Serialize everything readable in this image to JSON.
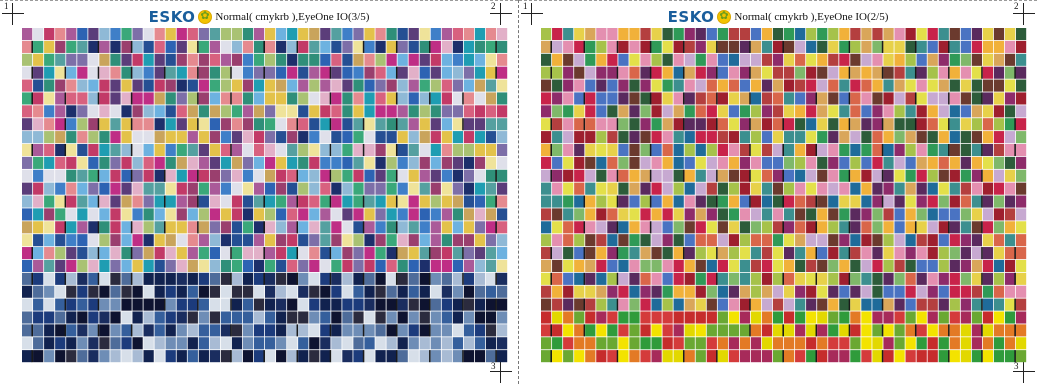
{
  "sheets": [
    {
      "logo_text": "ESKO",
      "logo_icon": "esko-flower-icon",
      "title": "Normal( cmykrb ),EyeOne IO(3/5)",
      "reg_marks": [
        "1",
        "2",
        "3"
      ],
      "palette": [
        "#2f8f79",
        "#c23a67",
        "#7d6fa8",
        "#2d63b3",
        "#e3c24a",
        "#3aa87a",
        "#d8617f",
        "#a9c273",
        "#5b3d7a",
        "#e58a8f",
        "#1f9db2",
        "#bf2e85",
        "#8fb9d6",
        "#c9a45c",
        "#3f7fc8",
        "#efe39a",
        "#9a3f6e",
        "#55a0a0",
        "#e2b0c8",
        "#1d2f6b",
        "#6db2e0",
        "#aa5a99",
        "#dfe0ea",
        "#254f93"
      ],
      "bottom_palette": [
        "#11224f",
        "#1c3b7c",
        "#355f9c",
        "#6e8db6",
        "#a8bbd4",
        "#d7dfe9",
        "#2b2b3e",
        "#4e6c9a",
        "#1a2d5f",
        "#0e1330"
      ]
    },
    {
      "logo_text": "ESKO",
      "logo_icon": "esko-flower-icon",
      "title": "Normal( cmykrb ),EyeOne IO(2/5)",
      "reg_marks": [
        "1",
        "2",
        "3"
      ],
      "palette": [
        "#c8234a",
        "#2f9a57",
        "#e7d14a",
        "#8e2b6a",
        "#4a73c2",
        "#d9664a",
        "#a6c24a",
        "#6b3a2e",
        "#e48fb0",
        "#2d5c3a",
        "#f1b13a",
        "#b43f3f",
        "#7fb86a",
        "#5a2a5e",
        "#3c8f8f",
        "#e3e04a",
        "#9e1f2e",
        "#c7a9d1",
        "#1f6b9a",
        "#d9a65a"
      ],
      "bottom_palette": [
        "#e2d800",
        "#f3e300",
        "#c62c2c",
        "#2f9b3b",
        "#a72a5a",
        "#e37a25",
        "#6aa832",
        "#d43b3b"
      ]
    }
  ]
}
